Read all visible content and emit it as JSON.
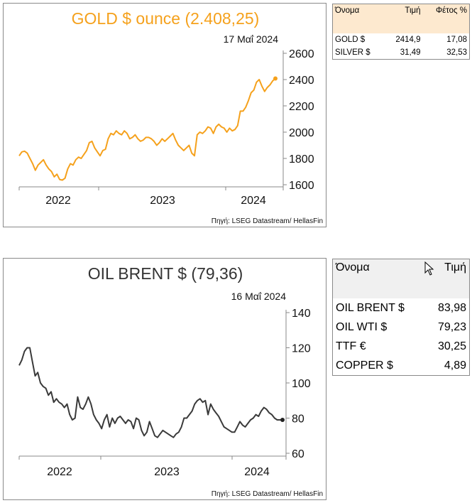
{
  "gold_panel": {
    "date": "17 Μαΐ 2024",
    "source": "Πηγή: LSEG Datastream/ HellasFin"
  },
  "oil_panel": {
    "date": "16 Μαΐ 2024",
    "source": "Πηγή: LSEG Datastream/ HellasFin"
  },
  "table_metals": {
    "headers": [
      "Όνομα",
      "Τιμή",
      "Φέτος %"
    ],
    "rows": [
      {
        "name": "GOLD $",
        "price": "2414,9",
        "ytd": "17,08"
      },
      {
        "name": "SILVER $",
        "price": "31,49",
        "ytd": "32,53"
      }
    ]
  },
  "table_energy": {
    "headers": [
      "Όνομα",
      "Τιμή"
    ],
    "rows": [
      {
        "name": "OIL BRENT $",
        "price": "83,98"
      },
      {
        "name": "OIL WTI $",
        "price": "79,23"
      },
      {
        "name": "TTF €",
        "price": "30,25"
      },
      {
        "name": "COPPER $",
        "price": "4,89"
      }
    ]
  },
  "colors": {
    "gold": "#f5a11c",
    "oil": "#3a3a3a",
    "table_header_gold": "#fde9cf",
    "table_header_oil": "#f0f0f0"
  },
  "chart_data": [
    {
      "type": "line",
      "title": "GOLD $ ounce (2.408,25)",
      "series": [
        {
          "values": [
            1820,
            1850,
            1855,
            1840,
            1800,
            1760,
            1710,
            1750,
            1770,
            1790,
            1750,
            1720,
            1700,
            1660,
            1680,
            1640,
            1635,
            1650,
            1720,
            1760,
            1750,
            1790,
            1810,
            1800,
            1830,
            1860,
            1920,
            1930,
            1880,
            1850,
            1820,
            1860,
            1870,
            1950,
            1990,
            1980,
            2010,
            1990,
            1980,
            2010,
            1990,
            1950,
            1960,
            1980,
            1950,
            1930,
            1940,
            1960,
            1960,
            1950,
            1930,
            1900,
            1920,
            1950,
            1930,
            1950,
            1970,
            1990,
            1940,
            1900,
            1880,
            1860,
            1880,
            1900,
            1840,
            1820,
            1980,
            2000,
            1990,
            2010,
            2040,
            2030,
            1990,
            2040,
            2060,
            2040,
            2030,
            2000,
            2030,
            2010,
            2020,
            2050,
            2160,
            2160,
            2190,
            2240,
            2300,
            2320,
            2380,
            2400,
            2350,
            2310,
            2340,
            2360,
            2390,
            2408
          ]
        }
      ],
      "x_labels": [
        "2022",
        "2023",
        "2024"
      ],
      "y_ticks": [
        1600,
        1800,
        2000,
        2200,
        2400,
        2600
      ],
      "ylim": [
        1600,
        2600
      ]
    },
    {
      "type": "line",
      "title": "OIL BRENT $ (79,36)",
      "series": [
        {
          "values": [
            110,
            113,
            118,
            120,
            120,
            112,
            104,
            106,
            100,
            98,
            97,
            93,
            95,
            89,
            91,
            89,
            88,
            86,
            88,
            82,
            79,
            80,
            92,
            86,
            85,
            88,
            92,
            88,
            82,
            79,
            77,
            74,
            79,
            82,
            75,
            80,
            77,
            80,
            81,
            79,
            77,
            79,
            78,
            74,
            80,
            79,
            73,
            70,
            72,
            78,
            74,
            70,
            69,
            71,
            73,
            72,
            71,
            70,
            69,
            71,
            72,
            75,
            80,
            80,
            82,
            84,
            88,
            90,
            91,
            89,
            90,
            82,
            88,
            85,
            83,
            81,
            78,
            75,
            74,
            73,
            72,
            72,
            75,
            78,
            76,
            75,
            77,
            79,
            80,
            82,
            81,
            84,
            86,
            85,
            83,
            82,
            80,
            79,
            79,
            79
          ]
        }
      ],
      "x_labels": [
        "2022",
        "2023",
        "2024"
      ],
      "y_ticks": [
        60,
        80,
        100,
        120,
        140
      ],
      "ylim": [
        60,
        140
      ]
    }
  ]
}
